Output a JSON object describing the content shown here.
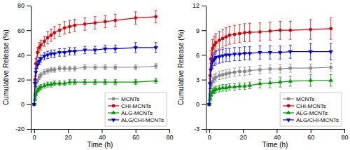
{
  "chart_data": [
    {
      "type": "line",
      "xlabel": "Time (h)",
      "ylabel": "Cumulative Release (%)",
      "xlim": [
        -2,
        80
      ],
      "ylim": [
        -20,
        80
      ],
      "xticks": [
        0,
        20,
        40,
        60,
        80
      ],
      "yticks": [
        -20,
        0,
        20,
        40,
        60,
        80
      ],
      "grid": false,
      "legend": "lower right",
      "x": [
        0,
        0.5,
        1,
        2,
        3,
        4,
        6,
        8,
        10,
        12,
        15,
        18,
        21,
        24,
        30,
        36,
        42,
        48,
        60,
        72
      ],
      "series": [
        {
          "name": "MCNTs",
          "color": "#888888",
          "marker": "square",
          "values": [
            0,
            8,
            14,
            19,
            22,
            24,
            26,
            27,
            28,
            28,
            29,
            29,
            29,
            29,
            30,
            30,
            30,
            30,
            30,
            31
          ],
          "errors": [
            0,
            1.5,
            2,
            2,
            2,
            2,
            2,
            2,
            2,
            2,
            2,
            2,
            2,
            2,
            2,
            2,
            2,
            2,
            2,
            2
          ]
        },
        {
          "name": "CHI-MCNTs",
          "color": "#dd0000",
          "marker": "circle",
          "values": [
            0,
            20,
            33,
            42,
            46,
            48,
            51,
            54,
            56,
            58,
            60,
            62,
            63,
            64,
            65,
            66,
            67,
            68,
            70,
            71
          ],
          "errors": [
            0,
            3,
            4,
            4,
            4,
            4,
            4,
            5,
            5,
            5,
            5,
            5,
            5,
            5,
            5,
            5,
            5,
            5,
            5,
            5
          ]
        },
        {
          "name": "ALG-MCNTs",
          "color": "#009900",
          "marker": "triangle-up",
          "values": [
            0,
            4,
            8,
            11,
            13,
            14,
            15,
            16,
            16,
            17,
            17,
            17,
            18,
            18,
            18,
            18,
            18,
            18,
            18,
            19
          ],
          "errors": [
            0,
            1.5,
            2,
            2,
            2,
            2,
            2,
            2,
            2,
            2,
            2,
            2,
            2,
            2,
            2,
            2,
            2,
            2,
            2,
            2
          ]
        },
        {
          "name": "ALG/CHI-MCNTs",
          "color": "#0000dd",
          "marker": "triangle-down",
          "values": [
            0,
            17,
            26,
            32,
            35,
            37,
            39,
            40,
            41,
            41,
            42,
            42,
            43,
            43,
            44,
            44,
            45,
            45,
            46,
            46
          ],
          "errors": [
            0,
            2.5,
            3,
            3,
            3,
            3,
            3,
            3,
            3,
            3,
            3,
            3,
            3,
            3,
            3,
            3,
            3,
            3,
            4,
            4
          ]
        }
      ]
    },
    {
      "type": "line",
      "xlabel": "Time (h)",
      "ylabel": "Cumulative Release (%)",
      "xlim": [
        -2,
        80
      ],
      "ylim": [
        -3,
        12
      ],
      "xticks": [
        0,
        20,
        40,
        60,
        80
      ],
      "yticks": [
        -3,
        0,
        3,
        6,
        9,
        12
      ],
      "grid": false,
      "legend": "lower right",
      "x": [
        0,
        0.5,
        1,
        2,
        3,
        4,
        6,
        8,
        10,
        12,
        15,
        18,
        21,
        24,
        30,
        36,
        42,
        48,
        60,
        72
      ],
      "series": [
        {
          "name": "MCNTs",
          "color": "#888888",
          "marker": "square",
          "values": [
            0,
            1.2,
            2.2,
            2.8,
            3.1,
            3.3,
            3.5,
            3.6,
            3.7,
            3.8,
            3.9,
            4.0,
            4.0,
            4.1,
            4.2,
            4.3,
            4.3,
            4.4,
            4.4,
            4.5
          ],
          "errors": [
            0,
            0.4,
            0.5,
            0.5,
            0.5,
            0.5,
            0.5,
            0.5,
            0.5,
            0.5,
            0.5,
            0.5,
            0.5,
            0.5,
            0.5,
            0.5,
            0.5,
            0.5,
            0.5,
            0.5
          ]
        },
        {
          "name": "CHI-MCNTs",
          "color": "#dd0000",
          "marker": "circle",
          "values": [
            0,
            3.5,
            5.5,
            6.8,
            7.2,
            7.5,
            7.8,
            8.0,
            8.2,
            8.4,
            8.5,
            8.6,
            8.7,
            8.75,
            8.8,
            8.9,
            9.0,
            9.0,
            9.1,
            9.2
          ],
          "errors": [
            0,
            0.8,
            1.0,
            1.1,
            1.1,
            1.1,
            1.1,
            1.1,
            1.1,
            1.1,
            1.1,
            1.1,
            1.1,
            1.1,
            1.1,
            1.1,
            1.1,
            1.1,
            1.2,
            1.3
          ]
        },
        {
          "name": "ALG-MCNTs",
          "color": "#009900",
          "marker": "triangle-up",
          "values": [
            0,
            0.6,
            1.1,
            1.5,
            1.7,
            1.8,
            1.9,
            2.0,
            2.0,
            2.1,
            2.1,
            2.2,
            2.2,
            2.3,
            2.5,
            2.6,
            2.7,
            2.8,
            2.9,
            2.9
          ],
          "errors": [
            0,
            0.3,
            0.4,
            0.4,
            0.4,
            0.4,
            0.4,
            0.4,
            0.4,
            0.4,
            0.4,
            0.4,
            0.4,
            0.4,
            0.5,
            0.6,
            0.6,
            0.6,
            0.7,
            0.7
          ]
        },
        {
          "name": "ALG/CHI-MCNTs",
          "color": "#0000dd",
          "marker": "triangle-down",
          "values": [
            0,
            2.5,
            4.2,
            5.2,
            5.5,
            5.7,
            5.8,
            5.9,
            6.0,
            6.0,
            6.1,
            6.1,
            6.2,
            6.2,
            6.3,
            6.3,
            6.3,
            6.4,
            6.4,
            6.4
          ],
          "errors": [
            0,
            0.6,
            0.8,
            0.8,
            0.8,
            0.8,
            0.8,
            0.8,
            0.8,
            0.8,
            0.8,
            0.8,
            0.8,
            0.8,
            0.8,
            0.8,
            0.8,
            0.8,
            1.0,
            1.0
          ]
        }
      ]
    }
  ]
}
